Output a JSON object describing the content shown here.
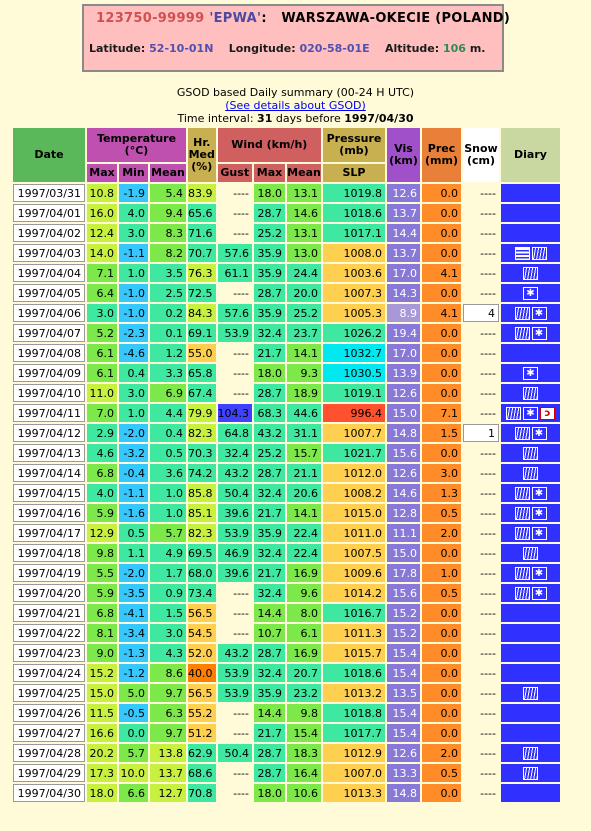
{
  "station": {
    "code": "123750-99999",
    "icao": "'EPWA'",
    "sep": ":",
    "name": "WARSZAWA-OKECIE (POLAND)",
    "lat_label": "Latitude:",
    "lat": "52-10-01N",
    "lon_label": "Longitude:",
    "lon": "020-58-01E",
    "alt_label": "Altitude:",
    "alt": "106",
    "alt_unit": "m."
  },
  "summary": {
    "line1": "GSOD based Daily summary (00-24 H UTC)",
    "link": "(See details about GSOD)",
    "interval_prefix": "Time interval:",
    "days": "31",
    "interval_mid": "days before",
    "end_date": "1997/04/30"
  },
  "headers": {
    "date": "Date",
    "temp": "Temperature (°C)",
    "hr": "Hr. Med (%)",
    "wind": "Wind (km/h)",
    "pressure": "Pressure (mb)",
    "vis": "Vis (km)",
    "prec": "Prec (mm)",
    "snow": "Snow (cm)",
    "diary": "Diary",
    "max": "Max",
    "min": "Min",
    "mean": "Mean",
    "gust": "Gust",
    "wmax": "Max",
    "wmean": "Mean",
    "slp": "SLP"
  },
  "colors": {
    "temp_cold": "#35c8ff",
    "temp_cool": "#3fe8a0",
    "temp_mild": "#7ce84a",
    "temp_warm": "#c8f040",
    "hr_high": "#c8f040",
    "hr_mid": "#3fe8a0",
    "hr_low": "#ffd050",
    "hr_vlow": "#ff8000",
    "gust_high": "#4040ff",
    "wind_mid": "#3fe8a0",
    "wind_low": "#7ce84a",
    "press_high": "#00e8f0",
    "press_mid": "#3fe8a0",
    "press_low": "#ffd050",
    "press_vlow": "#ff5030",
    "vis": "#8878d8",
    "prec": "#ff8c28",
    "diary": "#3030ff"
  },
  "rows": [
    {
      "date": "1997/03/31",
      "tmax": "10.8",
      "tmin": "-1.9",
      "tmean": "5.4",
      "hr": "83.9",
      "gust": "----",
      "wmax": "18.0",
      "wmean": "13.1",
      "slp": "1019.8",
      "vis": "12.6",
      "prec": "0.0",
      "snow": "----",
      "diary": []
    },
    {
      "date": "1997/04/01",
      "tmax": "16.0",
      "tmin": "4.0",
      "tmean": "9.4",
      "hr": "65.6",
      "gust": "----",
      "wmax": "28.7",
      "wmean": "14.6",
      "slp": "1018.6",
      "vis": "13.7",
      "prec": "0.0",
      "snow": "----",
      "diary": []
    },
    {
      "date": "1997/04/02",
      "tmax": "12.4",
      "tmin": "3.0",
      "tmean": "8.3",
      "hr": "71.6",
      "gust": "----",
      "wmax": "25.2",
      "wmean": "13.1",
      "slp": "1017.1",
      "vis": "14.4",
      "prec": "0.0",
      "snow": "----",
      "diary": []
    },
    {
      "date": "1997/04/03",
      "tmax": "14.0",
      "tmin": "-1.1",
      "tmean": "8.2",
      "hr": "70.7",
      "gust": "57.6",
      "wmax": "35.9",
      "wmean": "13.0",
      "slp": "1008.0",
      "vis": "13.7",
      "prec": "0.0",
      "snow": "----",
      "diary": [
        "fog",
        "rain"
      ]
    },
    {
      "date": "1997/04/04",
      "tmax": "7.1",
      "tmin": "1.0",
      "tmean": "3.5",
      "hr": "76.3",
      "gust": "61.1",
      "wmax": "35.9",
      "wmean": "24.4",
      "slp": "1003.6",
      "vis": "17.0",
      "prec": "4.1",
      "snow": "----",
      "diary": [
        "rain"
      ]
    },
    {
      "date": "1997/04/05",
      "tmax": "6.4",
      "tmin": "-1.0",
      "tmean": "2.5",
      "hr": "72.5",
      "gust": "----",
      "wmax": "28.7",
      "wmean": "20.0",
      "slp": "1007.3",
      "vis": "14.3",
      "prec": "0.0",
      "snow": "----",
      "diary": [
        "snow"
      ]
    },
    {
      "date": "1997/04/06",
      "tmax": "3.0",
      "tmin": "-1.0",
      "tmean": "0.2",
      "hr": "84.3",
      "gust": "57.6",
      "wmax": "35.9",
      "wmean": "25.2",
      "slp": "1005.3",
      "vis": "8.9",
      "prec": "4.1",
      "snow": "4",
      "diary": [
        "rain",
        "snow"
      ]
    },
    {
      "date": "1997/04/07",
      "tmax": "5.2",
      "tmin": "-2.3",
      "tmean": "0.1",
      "hr": "69.1",
      "gust": "53.9",
      "wmax": "32.4",
      "wmean": "23.7",
      "slp": "1026.2",
      "vis": "19.4",
      "prec": "0.0",
      "snow": "----",
      "diary": [
        "rain",
        "snow"
      ]
    },
    {
      "date": "1997/04/08",
      "tmax": "6.1",
      "tmin": "-4.6",
      "tmean": "1.2",
      "hr": "55.0",
      "gust": "----",
      "wmax": "21.7",
      "wmean": "14.1",
      "slp": "1032.7",
      "vis": "17.0",
      "prec": "0.0",
      "snow": "----",
      "diary": []
    },
    {
      "date": "1997/04/09",
      "tmax": "6.1",
      "tmin": "0.4",
      "tmean": "3.3",
      "hr": "65.8",
      "gust": "----",
      "wmax": "18.0",
      "wmean": "9.3",
      "slp": "1030.5",
      "vis": "13.9",
      "prec": "0.0",
      "snow": "----",
      "diary": [
        "snow"
      ]
    },
    {
      "date": "1997/04/10",
      "tmax": "11.0",
      "tmin": "3.0",
      "tmean": "6.9",
      "hr": "67.4",
      "gust": "----",
      "wmax": "28.7",
      "wmean": "18.9",
      "slp": "1019.1",
      "vis": "12.6",
      "prec": "0.0",
      "snow": "----",
      "diary": [
        "rain"
      ]
    },
    {
      "date": "1997/04/11",
      "tmax": "7.0",
      "tmin": "1.0",
      "tmean": "4.4",
      "hr": "79.9",
      "gust": "104.3",
      "wmax": "68.3",
      "wmean": "44.6",
      "slp": "996.4",
      "vis": "15.0",
      "prec": "7.1",
      "snow": "----",
      "diary": [
        "rain",
        "snow",
        "thunder"
      ]
    },
    {
      "date": "1997/04/12",
      "tmax": "2.9",
      "tmin": "-2.0",
      "tmean": "0.4",
      "hr": "82.3",
      "gust": "64.8",
      "wmax": "43.2",
      "wmean": "31.1",
      "slp": "1007.7",
      "vis": "14.8",
      "prec": "1.5",
      "snow": "1",
      "diary": [
        "rain",
        "snow"
      ]
    },
    {
      "date": "1997/04/13",
      "tmax": "4.6",
      "tmin": "-3.2",
      "tmean": "0.5",
      "hr": "70.3",
      "gust": "32.4",
      "wmax": "25.2",
      "wmean": "15.7",
      "slp": "1021.7",
      "vis": "15.6",
      "prec": "0.0",
      "snow": "----",
      "diary": [
        "rain"
      ]
    },
    {
      "date": "1997/04/14",
      "tmax": "6.8",
      "tmin": "-0.4",
      "tmean": "3.6",
      "hr": "74.2",
      "gust": "43.2",
      "wmax": "28.7",
      "wmean": "21.1",
      "slp": "1012.0",
      "vis": "12.6",
      "prec": "3.0",
      "snow": "----",
      "diary": [
        "rain"
      ]
    },
    {
      "date": "1997/04/15",
      "tmax": "4.0",
      "tmin": "-1.1",
      "tmean": "1.0",
      "hr": "85.8",
      "gust": "50.4",
      "wmax": "32.4",
      "wmean": "20.6",
      "slp": "1008.2",
      "vis": "14.6",
      "prec": "1.3",
      "snow": "----",
      "diary": [
        "rain",
        "snow"
      ]
    },
    {
      "date": "1997/04/16",
      "tmax": "5.9",
      "tmin": "-1.6",
      "tmean": "1.0",
      "hr": "85.1",
      "gust": "39.6",
      "wmax": "21.7",
      "wmean": "14.1",
      "slp": "1015.0",
      "vis": "12.8",
      "prec": "0.5",
      "snow": "----",
      "diary": [
        "rain",
        "snow"
      ]
    },
    {
      "date": "1997/04/17",
      "tmax": "12.9",
      "tmin": "0.5",
      "tmean": "5.7",
      "hr": "82.3",
      "gust": "53.9",
      "wmax": "35.9",
      "wmean": "22.4",
      "slp": "1011.0",
      "vis": "11.1",
      "prec": "2.0",
      "snow": "----",
      "diary": [
        "rain",
        "snow"
      ]
    },
    {
      "date": "1997/04/18",
      "tmax": "9.8",
      "tmin": "1.1",
      "tmean": "4.9",
      "hr": "69.5",
      "gust": "46.9",
      "wmax": "32.4",
      "wmean": "22.4",
      "slp": "1007.5",
      "vis": "15.0",
      "prec": "0.0",
      "snow": "----",
      "diary": [
        "rain"
      ]
    },
    {
      "date": "1997/04/19",
      "tmax": "5.5",
      "tmin": "-2.0",
      "tmean": "1.7",
      "hr": "68.0",
      "gust": "39.6",
      "wmax": "21.7",
      "wmean": "16.9",
      "slp": "1009.6",
      "vis": "17.8",
      "prec": "1.0",
      "snow": "----",
      "diary": [
        "rain",
        "snow"
      ]
    },
    {
      "date": "1997/04/20",
      "tmax": "5.9",
      "tmin": "-3.5",
      "tmean": "0.9",
      "hr": "73.4",
      "gust": "----",
      "wmax": "32.4",
      "wmean": "9.6",
      "slp": "1014.2",
      "vis": "15.6",
      "prec": "0.5",
      "snow": "----",
      "diary": [
        "rain",
        "snow"
      ]
    },
    {
      "date": "1997/04/21",
      "tmax": "6.8",
      "tmin": "-4.1",
      "tmean": "1.5",
      "hr": "56.5",
      "gust": "----",
      "wmax": "14.4",
      "wmean": "8.0",
      "slp": "1016.7",
      "vis": "15.2",
      "prec": "0.0",
      "snow": "----",
      "diary": []
    },
    {
      "date": "1997/04/22",
      "tmax": "8.1",
      "tmin": "-3.4",
      "tmean": "3.0",
      "hr": "54.5",
      "gust": "----",
      "wmax": "10.7",
      "wmean": "6.1",
      "slp": "1011.3",
      "vis": "15.2",
      "prec": "0.0",
      "snow": "----",
      "diary": []
    },
    {
      "date": "1997/04/23",
      "tmax": "9.0",
      "tmin": "-1.3",
      "tmean": "4.3",
      "hr": "52.0",
      "gust": "43.2",
      "wmax": "28.7",
      "wmean": "16.9",
      "slp": "1015.7",
      "vis": "15.4",
      "prec": "0.0",
      "snow": "----",
      "diary": []
    },
    {
      "date": "1997/04/24",
      "tmax": "15.2",
      "tmin": "-1.2",
      "tmean": "8.6",
      "hr": "40.0",
      "gust": "53.9",
      "wmax": "32.4",
      "wmean": "20.7",
      "slp": "1018.6",
      "vis": "15.4",
      "prec": "0.0",
      "snow": "----",
      "diary": []
    },
    {
      "date": "1997/04/25",
      "tmax": "15.0",
      "tmin": "5.0",
      "tmean": "9.7",
      "hr": "56.5",
      "gust": "53.9",
      "wmax": "35.9",
      "wmean": "23.2",
      "slp": "1013.2",
      "vis": "13.5",
      "prec": "0.0",
      "snow": "----",
      "diary": [
        "rain"
      ]
    },
    {
      "date": "1997/04/26",
      "tmax": "11.5",
      "tmin": "-0.5",
      "tmean": "6.3",
      "hr": "55.2",
      "gust": "----",
      "wmax": "14.4",
      "wmean": "9.8",
      "slp": "1018.8",
      "vis": "15.4",
      "prec": "0.0",
      "snow": "----",
      "diary": []
    },
    {
      "date": "1997/04/27",
      "tmax": "16.6",
      "tmin": "0.0",
      "tmean": "9.7",
      "hr": "51.2",
      "gust": "----",
      "wmax": "21.7",
      "wmean": "15.4",
      "slp": "1017.7",
      "vis": "15.4",
      "prec": "0.0",
      "snow": "----",
      "diary": []
    },
    {
      "date": "1997/04/28",
      "tmax": "20.2",
      "tmin": "5.7",
      "tmean": "13.8",
      "hr": "62.9",
      "gust": "50.4",
      "wmax": "28.7",
      "wmean": "18.3",
      "slp": "1012.9",
      "vis": "12.6",
      "prec": "2.0",
      "snow": "----",
      "diary": [
        "rain"
      ]
    },
    {
      "date": "1997/04/29",
      "tmax": "17.3",
      "tmin": "10.0",
      "tmean": "13.7",
      "hr": "68.6",
      "gust": "----",
      "wmax": "28.7",
      "wmean": "16.4",
      "slp": "1007.0",
      "vis": "13.3",
      "prec": "0.5",
      "snow": "----",
      "diary": [
        "rain"
      ]
    },
    {
      "date": "1997/04/30",
      "tmax": "18.0",
      "tmin": "6.6",
      "tmean": "12.7",
      "hr": "70.8",
      "gust": "----",
      "wmax": "18.0",
      "wmean": "10.6",
      "slp": "1013.3",
      "vis": "14.8",
      "prec": "0.0",
      "snow": "----",
      "diary": []
    }
  ]
}
